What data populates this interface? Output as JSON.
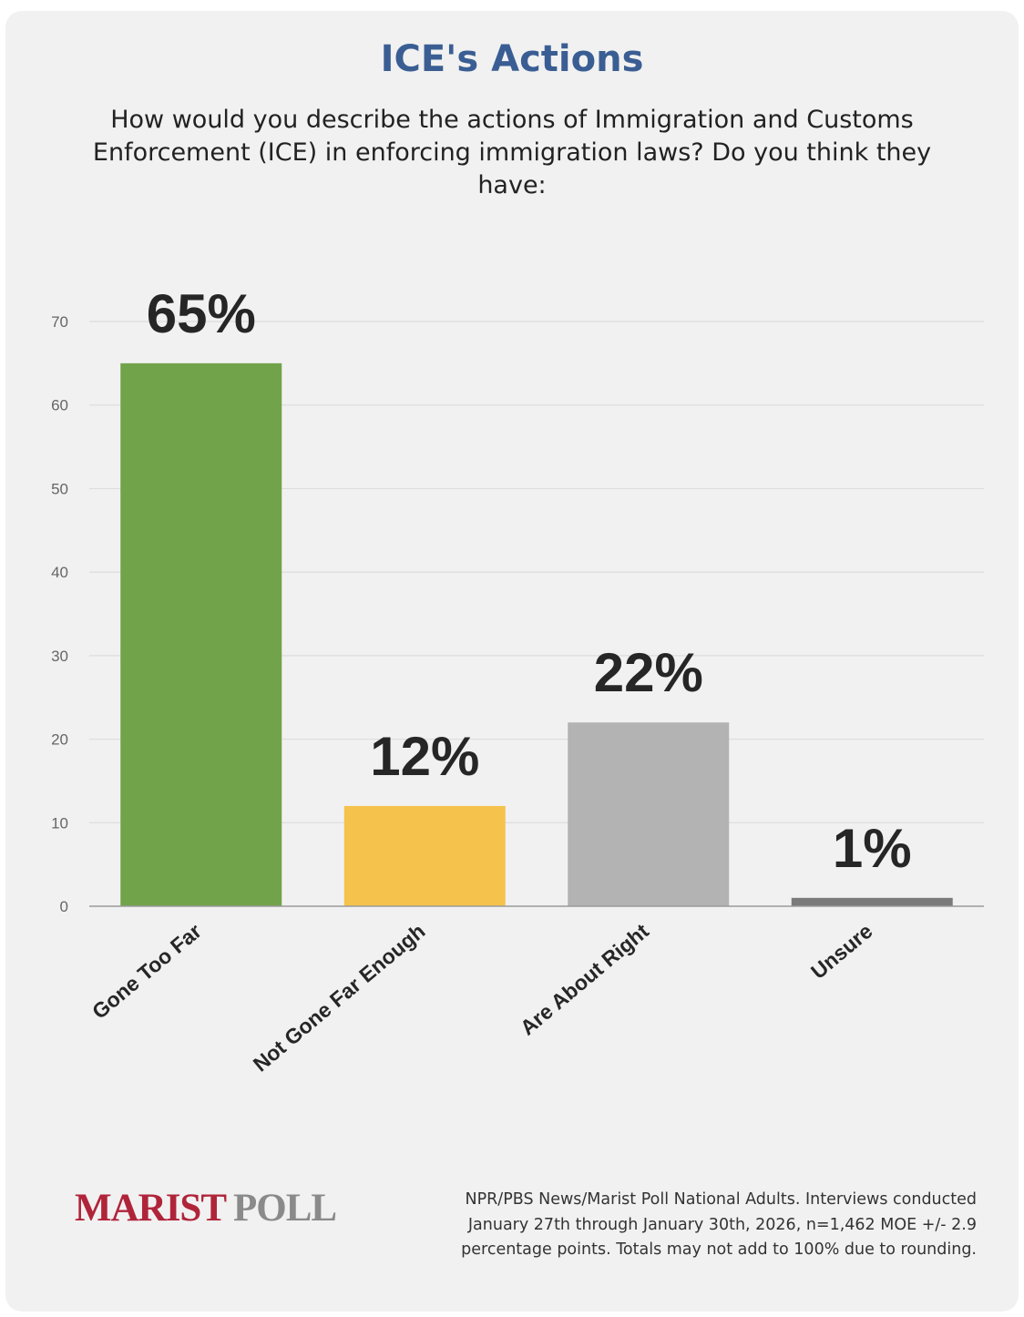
{
  "header": {
    "title": "ICE's Actions",
    "subtitle": "How would you describe the actions of Immigration and Customs Enforcement (ICE) in enforcing immigration laws? Do you think they have:"
  },
  "chart_data": {
    "type": "bar",
    "title": "ICE's Actions",
    "categories": [
      "Gone Too Far",
      "Not Gone Far Enough",
      "Are About Right",
      "Unsure"
    ],
    "values": [
      65,
      12,
      22,
      1
    ],
    "data_labels": [
      "65%",
      "12%",
      "22%",
      "1%"
    ],
    "colors": [
      "#71a34a",
      "#f5c24c",
      "#b3b3b3",
      "#7a7a7a"
    ],
    "y_ticks": [
      0,
      10,
      20,
      30,
      40,
      50,
      60,
      70
    ],
    "ylim": [
      0,
      70
    ],
    "grid": true,
    "legend": "none"
  },
  "footer": {
    "logo_marist": "MARIST",
    "logo_poll": "POLL",
    "note": "NPR/PBS News/Marist Poll National Adults. Interviews conducted January 27th through January 30th, 2026, n=1,462 MOE +/- 2.9 percentage points. Totals may not add to 100% due to rounding."
  },
  "colors": {
    "title": "#3a5e93",
    "background": "#f1f1f1",
    "logo_red": "#b0243a",
    "logo_gray": "#8a8a8a"
  }
}
